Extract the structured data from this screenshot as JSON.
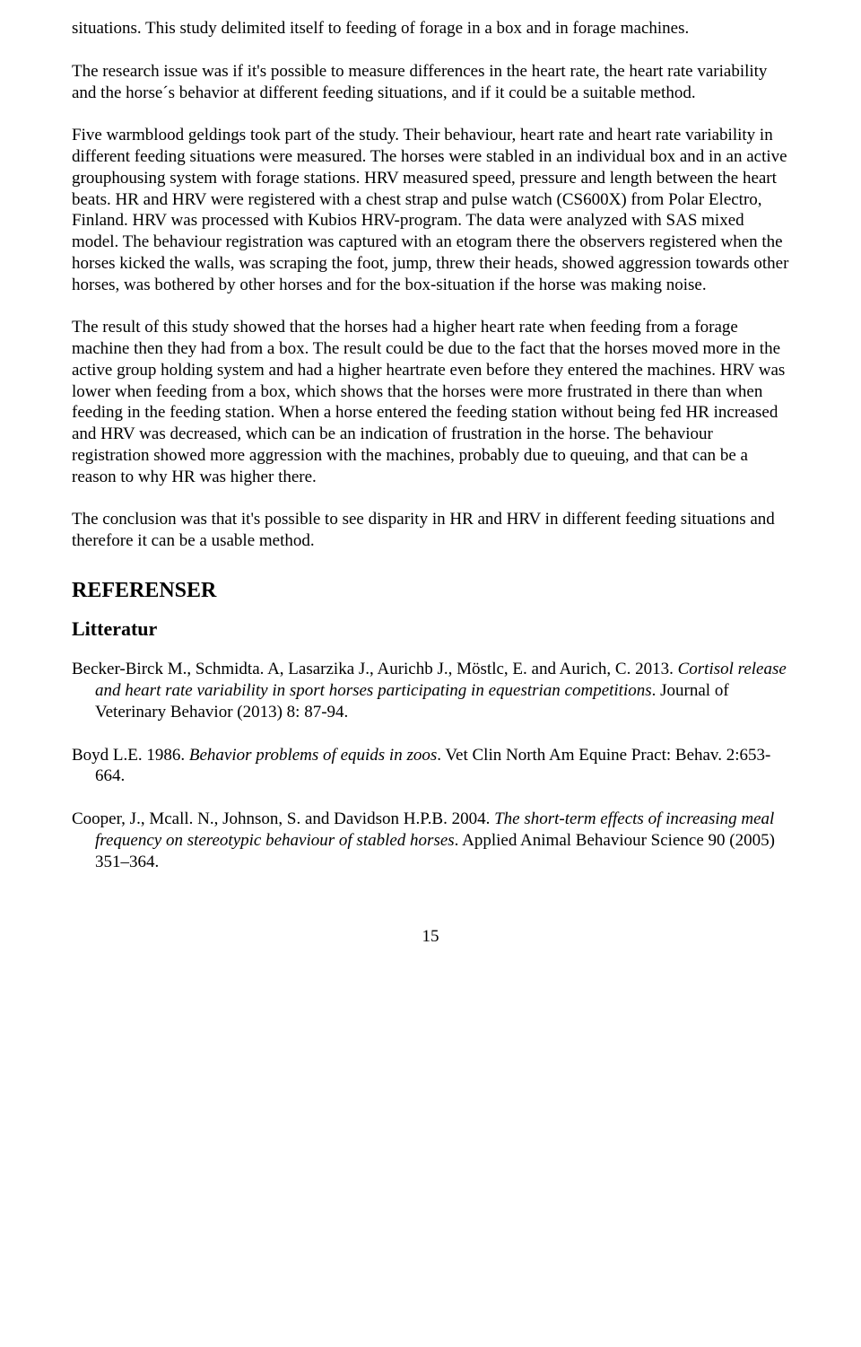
{
  "paragraphs": {
    "p1": "situations. This study delimited itself to feeding of forage in a box and in forage machines.",
    "p2": "The research issue was if it's possible to measure differences in the heart rate, the heart rate variability and the horse´s behavior at different feeding situations, and if it could be a suitable method.",
    "p3": "Five warmblood geldings took part of the study. Their behaviour, heart rate and heart rate variability in different feeding situations were measured. The horses were stabled in an individual box and in an active grouphousing system with forage stations. HRV measured speed, pressure and length between the heart beats. HR and HRV were registered with a chest strap and pulse watch (CS600X) from Polar Electro, Finland. HRV was processed with Kubios HRV-program. The data were analyzed with SAS mixed model. The behaviour registration was captured with an etogram there the observers registered when the horses kicked the walls, was scraping the foot, jump, threw their heads, showed aggression towards other horses, was bothered by other horses and for the box-situation if the horse was making noise.",
    "p4": "The result of this study showed that the horses had a higher heart rate when feeding from a forage machine then they had from a box. The result could be due to the fact that the horses moved more in the active group holding system and had a higher heartrate even before they entered the machines. HRV was lower when feeding from a box, which shows that the horses were more frustrated in there than when feeding in the feeding station. When a horse entered the feeding station without being fed HR increased and HRV was decreased, which can be an indication of frustration in the horse. The behaviour registration showed more aggression with the machines, probably due to queuing, and that can be a reason to why HR was higher there.",
    "p5": "The conclusion was that it's possible to see disparity in HR and HRV in different feeding situations and therefore it can be a usable method."
  },
  "headings": {
    "references": "REFERENSER",
    "literature": "Litteratur"
  },
  "references": {
    "ref1_authors": "Becker-Birck M., Schmidta. A, Lasarzika J., Aurichb J., Möstlc, E. and Aurich, C. 2013. ",
    "ref1_title": "Cortisol release and heart rate variability in sport horses participating in equestrian competitions",
    "ref1_journal": ". Journal of Veterinary Behavior (2013) 8: 87-94.",
    "ref2_authors": "Boyd L.E. 1986. ",
    "ref2_title": "Behavior problems of equids in zoos",
    "ref2_journal": ". Vet Clin North Am Equine Pract: Behav. 2:653-664.",
    "ref3_authors": "Cooper, J., Mcall. N., Johnson, S. and Davidson H.P.B. 2004. ",
    "ref3_title": "The short-term effects of increasing meal frequency on stereotypic behaviour of stabled horses",
    "ref3_journal": ". Applied Animal Behaviour Science 90 (2005) 351–364."
  },
  "page_number": "15"
}
